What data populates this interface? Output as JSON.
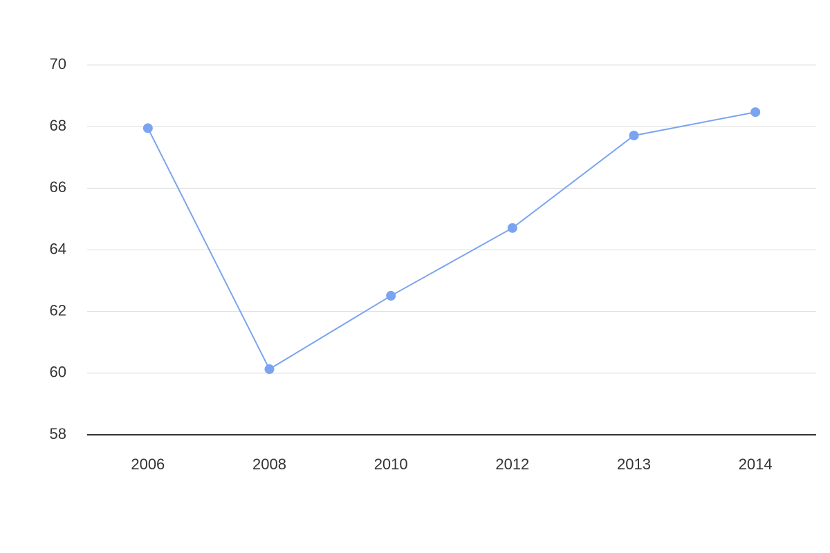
{
  "chart_data": {
    "type": "line",
    "categories": [
      "2006",
      "2008",
      "2010",
      "2012",
      "2013",
      "2014"
    ],
    "series": [
      {
        "color": "#7ba4f0",
        "values": [
          67.95,
          60.13,
          62.51,
          64.71,
          67.71,
          68.47
        ]
      }
    ],
    "ylim": [
      58,
      70
    ],
    "yticks": [
      58,
      60,
      62,
      64,
      66,
      68,
      70
    ],
    "grid": true
  }
}
